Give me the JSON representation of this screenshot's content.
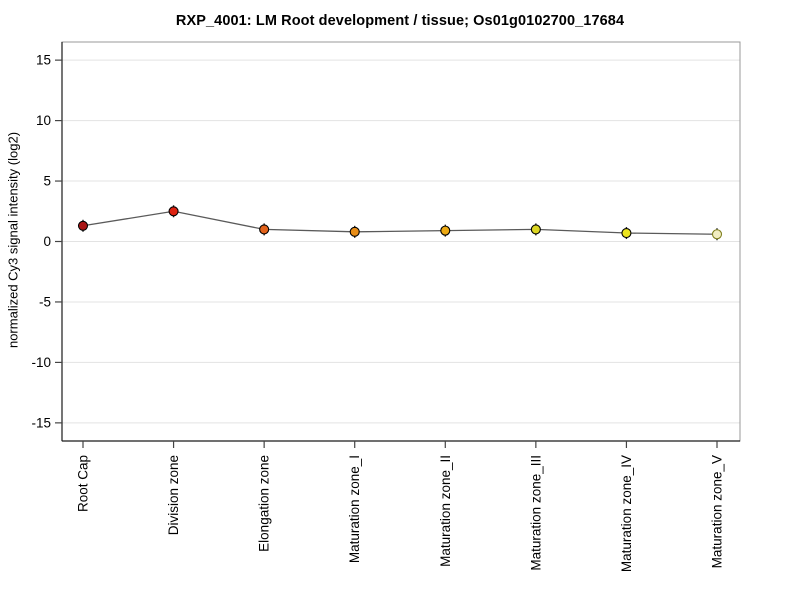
{
  "chart_data": {
    "type": "line",
    "title": "RXP_4001: LM Root development / tissue; Os01g0102700_17684",
    "ylabel": "normalized Cy3 signal intensity (log2)",
    "xlabel": "",
    "categories": [
      "Root Cap",
      "Division zone",
      "Elongation zone",
      "Maturation zone_I",
      "Maturation zone_II",
      "Maturation zone_III",
      "Maturation zone_IV",
      "Maturation zone_V"
    ],
    "values": [
      1.3,
      2.5,
      1.0,
      0.8,
      0.9,
      1.0,
      0.7,
      0.6
    ],
    "yticks": [
      15,
      10,
      5,
      0,
      -5,
      -10,
      -15
    ],
    "ytick_labels": [
      "15",
      "10",
      "5",
      "0",
      "-5",
      "-10",
      "-15"
    ],
    "ylim": [
      -16.5,
      16.5
    ],
    "grid": true,
    "legend_position": "none",
    "line_color": "#5a5a5a",
    "grid_color": "#e3e3e3",
    "error_bar_color": "#222222",
    "axis_box_color": "#999999",
    "axis_line_color": "#1a1a1a",
    "tick_color": "#444444",
    "text_color": "#000000",
    "point_colors": [
      "#a81414",
      "#dd2211",
      "#e2621b",
      "#e88d17",
      "#edaa14",
      "#dcd622",
      "#ece41f",
      "#f1edc2"
    ],
    "point_border_colors": [
      "#000000",
      "#000000",
      "#000000",
      "#000000",
      "#000000",
      "#000000",
      "#000000",
      "#808020"
    ]
  }
}
